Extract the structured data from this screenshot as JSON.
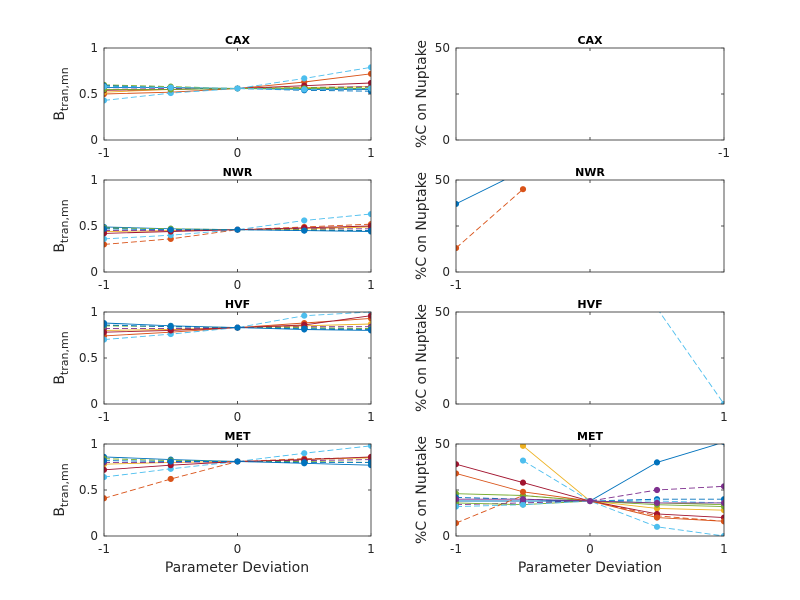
{
  "figure": {
    "xlabel": "Parameter Deviation"
  },
  "palette": [
    "#0072BD",
    "#D95319",
    "#EDB120",
    "#7E2F8E",
    "#77AC30",
    "#4DBEEE",
    "#A2142F"
  ],
  "chart_data": [
    {
      "type": "line",
      "title": "CAX",
      "ylabel": "B_tran,mn",
      "xlim": [
        -1,
        1
      ],
      "ylim": [
        0,
        1
      ],
      "xticks": [
        "-1",
        "0",
        "1"
      ],
      "yticks": [
        "0",
        "0.5",
        "1"
      ],
      "x": [
        -1,
        -0.5,
        0,
        0.5,
        1
      ],
      "series": [
        {
          "values": [
            0.57,
            0.57,
            0.56,
            0.55,
            0.55
          ],
          "dashed": false,
          "color": "#0072BD"
        },
        {
          "values": [
            0.5,
            0.52,
            0.56,
            0.63,
            0.72
          ],
          "dashed": false,
          "color": "#D95319"
        },
        {
          "values": [
            0.52,
            0.55,
            0.56,
            0.57,
            0.58
          ],
          "dashed": false,
          "color": "#EDB120"
        },
        {
          "values": [
            0.55,
            0.56,
            0.56,
            0.57,
            0.58
          ],
          "dashed": true,
          "color": "#7E2F8E"
        },
        {
          "values": [
            0.6,
            0.58,
            0.56,
            0.57,
            0.57
          ],
          "dashed": true,
          "color": "#77AC30"
        },
        {
          "values": [
            0.43,
            0.51,
            0.56,
            0.67,
            0.79
          ],
          "dashed": true,
          "color": "#4DBEEE"
        },
        {
          "values": [
            0.54,
            0.55,
            0.56,
            0.59,
            0.62
          ],
          "dashed": false,
          "color": "#A2142F"
        },
        {
          "values": [
            0.59,
            0.57,
            0.56,
            0.54,
            0.53
          ],
          "dashed": true,
          "color": "#0072BD"
        },
        {
          "values": [
            0.55,
            0.55,
            0.56,
            0.56,
            0.56
          ],
          "dashed": false,
          "color": "#77AC30"
        },
        {
          "values": [
            0.58,
            0.57,
            0.56,
            0.55,
            0.56
          ],
          "dashed": true,
          "color": "#4DBEEE"
        }
      ]
    },
    {
      "type": "line",
      "title": "CAX",
      "ylabel": "%C on Nuptake",
      "xlim": [
        -1,
        1
      ],
      "ylim": [
        0,
        50
      ],
      "xticks": [
        "",
        "",
        "-1"
      ],
      "yticks": [
        "0",
        "",
        "50"
      ],
      "x": [
        -1,
        -0.5,
        0,
        0.5,
        1
      ],
      "series": []
    },
    {
      "type": "line",
      "title": "NWR",
      "ylabel": "B_tran,mn",
      "xlim": [
        -1,
        1
      ],
      "ylim": [
        0,
        1
      ],
      "xticks": [
        "-1",
        "0",
        "1"
      ],
      "yticks": [
        "0",
        "0.5",
        "1"
      ],
      "x": [
        -1,
        -0.5,
        0,
        0.5,
        1
      ],
      "series": [
        {
          "values": [
            0.49,
            0.47,
            0.46,
            0.45,
            0.44
          ],
          "dashed": false,
          "color": "#0072BD"
        },
        {
          "values": [
            0.3,
            0.36,
            0.46,
            0.49,
            0.52
          ],
          "dashed": true,
          "color": "#D95319"
        },
        {
          "values": [
            0.44,
            0.45,
            0.46,
            0.47,
            0.49
          ],
          "dashed": false,
          "color": "#EDB120"
        },
        {
          "values": [
            0.45,
            0.45,
            0.46,
            0.47,
            0.47
          ],
          "dashed": true,
          "color": "#7E2F8E"
        },
        {
          "values": [
            0.48,
            0.47,
            0.46,
            0.46,
            0.45
          ],
          "dashed": true,
          "color": "#77AC30"
        },
        {
          "values": [
            0.36,
            0.4,
            0.46,
            0.56,
            0.63
          ],
          "dashed": true,
          "color": "#4DBEEE"
        },
        {
          "values": [
            0.42,
            0.44,
            0.46,
            0.48,
            0.5
          ],
          "dashed": false,
          "color": "#A2142F"
        },
        {
          "values": [
            0.47,
            0.46,
            0.46,
            0.45,
            0.45
          ],
          "dashed": true,
          "color": "#0072BD"
        }
      ]
    },
    {
      "type": "line",
      "title": "NWR",
      "ylabel": "%C on Nuptake",
      "xlim": [
        -1,
        1
      ],
      "ylim": [
        0,
        50
      ],
      "xticks": [
        "-1",
        "",
        ""
      ],
      "yticks": [
        "0",
        "",
        "50"
      ],
      "x": [
        -1,
        -0.5,
        0,
        0.5,
        1
      ],
      "series": [
        {
          "values": [
            37,
            55,
            null,
            null,
            null
          ],
          "dashed": false,
          "color": "#0072BD"
        },
        {
          "values": [
            13,
            45,
            null,
            null,
            null
          ],
          "dashed": true,
          "color": "#D95319"
        }
      ]
    },
    {
      "type": "line",
      "title": "HVF",
      "ylabel": "B_tran,mn",
      "xlim": [
        -1,
        1
      ],
      "ylim": [
        0,
        1
      ],
      "xticks": [
        "-1",
        "0",
        "1"
      ],
      "yticks": [
        "0",
        "0.5",
        "1"
      ],
      "x": [
        -1,
        -0.5,
        0,
        0.5,
        1
      ],
      "series": [
        {
          "values": [
            0.88,
            0.85,
            0.83,
            0.81,
            0.8
          ],
          "dashed": false,
          "color": "#0072BD"
        },
        {
          "values": [
            0.74,
            0.78,
            0.83,
            0.88,
            0.93
          ],
          "dashed": false,
          "color": "#D95319"
        },
        {
          "values": [
            0.8,
            0.81,
            0.83,
            0.85,
            0.87
          ],
          "dashed": false,
          "color": "#EDB120"
        },
        {
          "values": [
            0.82,
            0.82,
            0.83,
            0.84,
            0.84
          ],
          "dashed": true,
          "color": "#7E2F8E"
        },
        {
          "values": [
            0.85,
            0.84,
            0.83,
            0.83,
            0.82
          ],
          "dashed": true,
          "color": "#77AC30"
        },
        {
          "values": [
            0.7,
            0.76,
            0.83,
            0.96,
            1.0
          ],
          "dashed": true,
          "color": "#4DBEEE"
        },
        {
          "values": [
            0.78,
            0.8,
            0.83,
            0.86,
            0.96
          ],
          "dashed": false,
          "color": "#A2142F"
        },
        {
          "values": [
            0.86,
            0.84,
            0.83,
            0.82,
            0.81
          ],
          "dashed": true,
          "color": "#0072BD"
        }
      ]
    },
    {
      "type": "line",
      "title": "HVF",
      "ylabel": "%C on Nuptake",
      "xlim": [
        -1,
        1
      ],
      "ylim": [
        0,
        50
      ],
      "xticks": [
        "",
        "",
        "1"
      ],
      "yticks": [
        "0",
        "",
        "50"
      ],
      "x": [
        -1,
        -0.5,
        0,
        0.5,
        1
      ],
      "series": [
        {
          "values": [
            null,
            null,
            null,
            52,
            0
          ],
          "dashed": true,
          "color": "#4DBEEE"
        }
      ]
    },
    {
      "type": "line",
      "title": "MET",
      "ylabel": "B_tran,mn",
      "xlim": [
        -1,
        1
      ],
      "ylim": [
        0,
        1
      ],
      "xticks": [
        "-1",
        "0",
        "1"
      ],
      "yticks": [
        "0",
        "0.5",
        "1"
      ],
      "x": [
        -1,
        -0.5,
        0,
        0.5,
        1
      ],
      "series": [
        {
          "values": [
            0.86,
            0.83,
            0.81,
            0.79,
            0.77
          ],
          "dashed": false,
          "color": "#0072BD"
        },
        {
          "values": [
            0.41,
            0.62,
            0.81,
            0.84,
            0.85
          ],
          "dashed": true,
          "color": "#D95319"
        },
        {
          "values": [
            0.78,
            0.8,
            0.81,
            0.83,
            0.85
          ],
          "dashed": false,
          "color": "#EDB120"
        },
        {
          "values": [
            0.8,
            0.8,
            0.81,
            0.82,
            0.83
          ],
          "dashed": true,
          "color": "#7E2F8E"
        },
        {
          "values": [
            0.84,
            0.82,
            0.81,
            0.81,
            0.8
          ],
          "dashed": true,
          "color": "#77AC30"
        },
        {
          "values": [
            0.64,
            0.73,
            0.81,
            0.9,
            0.98
          ],
          "dashed": true,
          "color": "#4DBEEE"
        },
        {
          "values": [
            0.72,
            0.77,
            0.81,
            0.83,
            0.86
          ],
          "dashed": false,
          "color": "#A2142F"
        },
        {
          "values": [
            0.82,
            0.81,
            0.81,
            0.8,
            0.8
          ],
          "dashed": true,
          "color": "#0072BD"
        }
      ]
    },
    {
      "type": "line",
      "title": "MET",
      "ylabel": "%C on Nuptake",
      "xlim": [
        -1,
        1
      ],
      "ylim": [
        0,
        50
      ],
      "xticks": [
        "-1",
        "0",
        "1"
      ],
      "yticks": [
        "0",
        "",
        "50"
      ],
      "x": [
        -1,
        -0.5,
        0,
        0.5,
        1
      ],
      "series": [
        {
          "values": [
            19,
            19,
            19,
            40,
            51
          ],
          "dashed": false,
          "color": "#0072BD"
        },
        {
          "values": [
            7,
            22,
            19,
            11,
            8
          ],
          "dashed": true,
          "color": "#D95319"
        },
        {
          "values": [
            null,
            49,
            19,
            15,
            14
          ],
          "dashed": false,
          "color": "#EDB120"
        },
        {
          "values": [
            17,
            18,
            19,
            25,
            27
          ],
          "dashed": true,
          "color": "#7E2F8E"
        },
        {
          "values": [
            23,
            22,
            19,
            18,
            17
          ],
          "dashed": false,
          "color": "#77AC30"
        },
        {
          "values": [
            null,
            41,
            19,
            5,
            0
          ],
          "dashed": true,
          "color": "#4DBEEE"
        },
        {
          "values": [
            39,
            29,
            19,
            12,
            10
          ],
          "dashed": false,
          "color": "#A2142F"
        },
        {
          "values": [
            34,
            24,
            19,
            10,
            8
          ],
          "dashed": false,
          "color": "#D95319"
        },
        {
          "values": [
            21,
            20,
            19,
            20,
            20
          ],
          "dashed": true,
          "color": "#0072BD"
        },
        {
          "values": [
            18,
            17,
            19,
            17,
            16
          ],
          "dashed": false,
          "color": "#77AC30"
        },
        {
          "values": [
            16,
            17,
            19,
            19,
            18
          ],
          "dashed": true,
          "color": "#4DBEEE"
        },
        {
          "values": [
            20,
            20,
            19,
            18,
            18
          ],
          "dashed": false,
          "color": "#7E2F8E"
        }
      ]
    }
  ]
}
